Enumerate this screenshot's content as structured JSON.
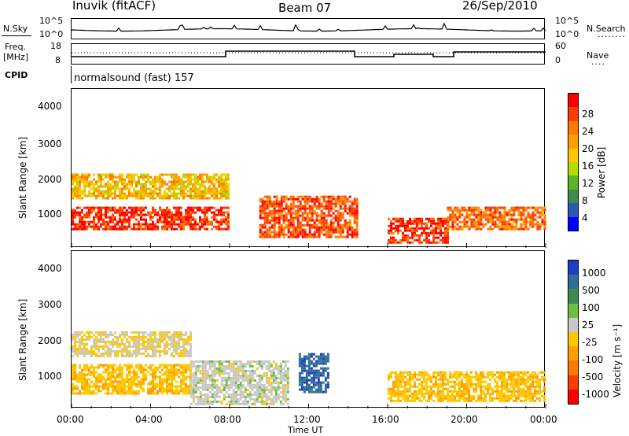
{
  "header": {
    "station": "Inuvik (fitACF)",
    "beam": "Beam 07",
    "date": "26/Sep/2010"
  },
  "nsky_panel": {
    "left_label": "N.Sky",
    "left_ticks": [
      "10^5",
      "10^0"
    ],
    "right_ticks": [
      "10^5",
      "10^0"
    ],
    "right_label": "N.Search",
    "right_legend_dots": "........"
  },
  "freq_panel": {
    "left_label_1": "Freq.",
    "left_label_2": "[MHz]",
    "left_ticks": [
      "18",
      "8"
    ],
    "right_ticks": [
      "60",
      "0"
    ],
    "right_label": "Nave",
    "right_legend_dots": "...."
  },
  "cpid_panel": {
    "label": "CPID",
    "text": "normalsound (fast) 157"
  },
  "power_panel": {
    "ylabel": "Slant Range [km]",
    "yticks": [
      "4000",
      "3000",
      "2000",
      "1000"
    ],
    "colorbar_label": "Power [dB]",
    "colorbar_ticks": [
      "28",
      "24",
      "20",
      "16",
      "12",
      "8",
      "4"
    ],
    "colors": [
      "#ff0000",
      "#ff3c00",
      "#ff7800",
      "#ffa000",
      "#ffc800",
      "#b4dc00",
      "#5ab428",
      "#3c8c50",
      "#285ab4",
      "#0000ff"
    ]
  },
  "velocity_panel": {
    "ylabel": "Slant Range [km]",
    "yticks": [
      "4000",
      "3000",
      "2000",
      "1000"
    ],
    "colorbar_label": "Velocity [m s⁻¹]",
    "colorbar_ticks": [
      "1000",
      "500",
      "100",
      "25",
      "-25",
      "-100",
      "-500",
      "-1000"
    ],
    "colors": [
      "#1f3cc8",
      "#2e6e9a",
      "#3c8c50",
      "#6cc040",
      "#c8c8c8",
      "#ffc800",
      "#ffa000",
      "#ff7800",
      "#ff3c00",
      "#ff0000"
    ]
  },
  "xaxis": {
    "label": "Time UT",
    "ticks": [
      "00:00",
      "04:00",
      "08:00",
      "12:00",
      "16:00",
      "20:00",
      "00:00"
    ]
  },
  "chart_data": {
    "type": "heatmap",
    "title": "Inuvik (fitACF) Beam 07 26/Sep/2010",
    "xlabel": "Time UT",
    "ylabel": "Slant Range [km]",
    "xlim": [
      "00:00",
      "24:00"
    ],
    "ylim": [
      180,
      4500
    ],
    "panels": [
      {
        "name": "Power",
        "unit": "dB",
        "colorbar_range": [
          0,
          30
        ],
        "regions": [
          {
            "t_start": 0.0,
            "t_end": 8.0,
            "range_km": [
              700,
              1300
            ],
            "value": 28
          },
          {
            "t_start": 0.0,
            "t_end": 8.0,
            "range_km": [
              1500,
              2200
            ],
            "value": 18
          },
          {
            "t_start": 9.5,
            "t_end": 14.5,
            "range_km": [
              500,
              1600
            ],
            "value": 26
          },
          {
            "t_start": 16.0,
            "t_end": 19.0,
            "range_km": [
              300,
              1000
            ],
            "value": 28
          },
          {
            "t_start": 19.0,
            "t_end": 24.0,
            "range_km": [
              700,
              1300
            ],
            "value": 24
          }
        ]
      },
      {
        "name": "Velocity",
        "unit": "m s-1",
        "colorbar_range": [
          -1000,
          1000
        ],
        "regions": [
          {
            "t_start": 0.0,
            "t_end": 6.0,
            "range_km": [
              600,
              1400
            ],
            "value": -150
          },
          {
            "t_start": 0.0,
            "t_end": 6.0,
            "range_km": [
              1600,
              2300
            ],
            "value": 0
          },
          {
            "t_start": 6.0,
            "t_end": 11.0,
            "range_km": [
              300,
              1500
            ],
            "value": 120
          },
          {
            "t_start": 11.5,
            "t_end": 13.0,
            "range_km": [
              600,
              1700
            ],
            "value": 800
          },
          {
            "t_start": 16.0,
            "t_end": 24.0,
            "range_km": [
              400,
              1200
            ],
            "value": -150
          }
        ]
      }
    ]
  }
}
